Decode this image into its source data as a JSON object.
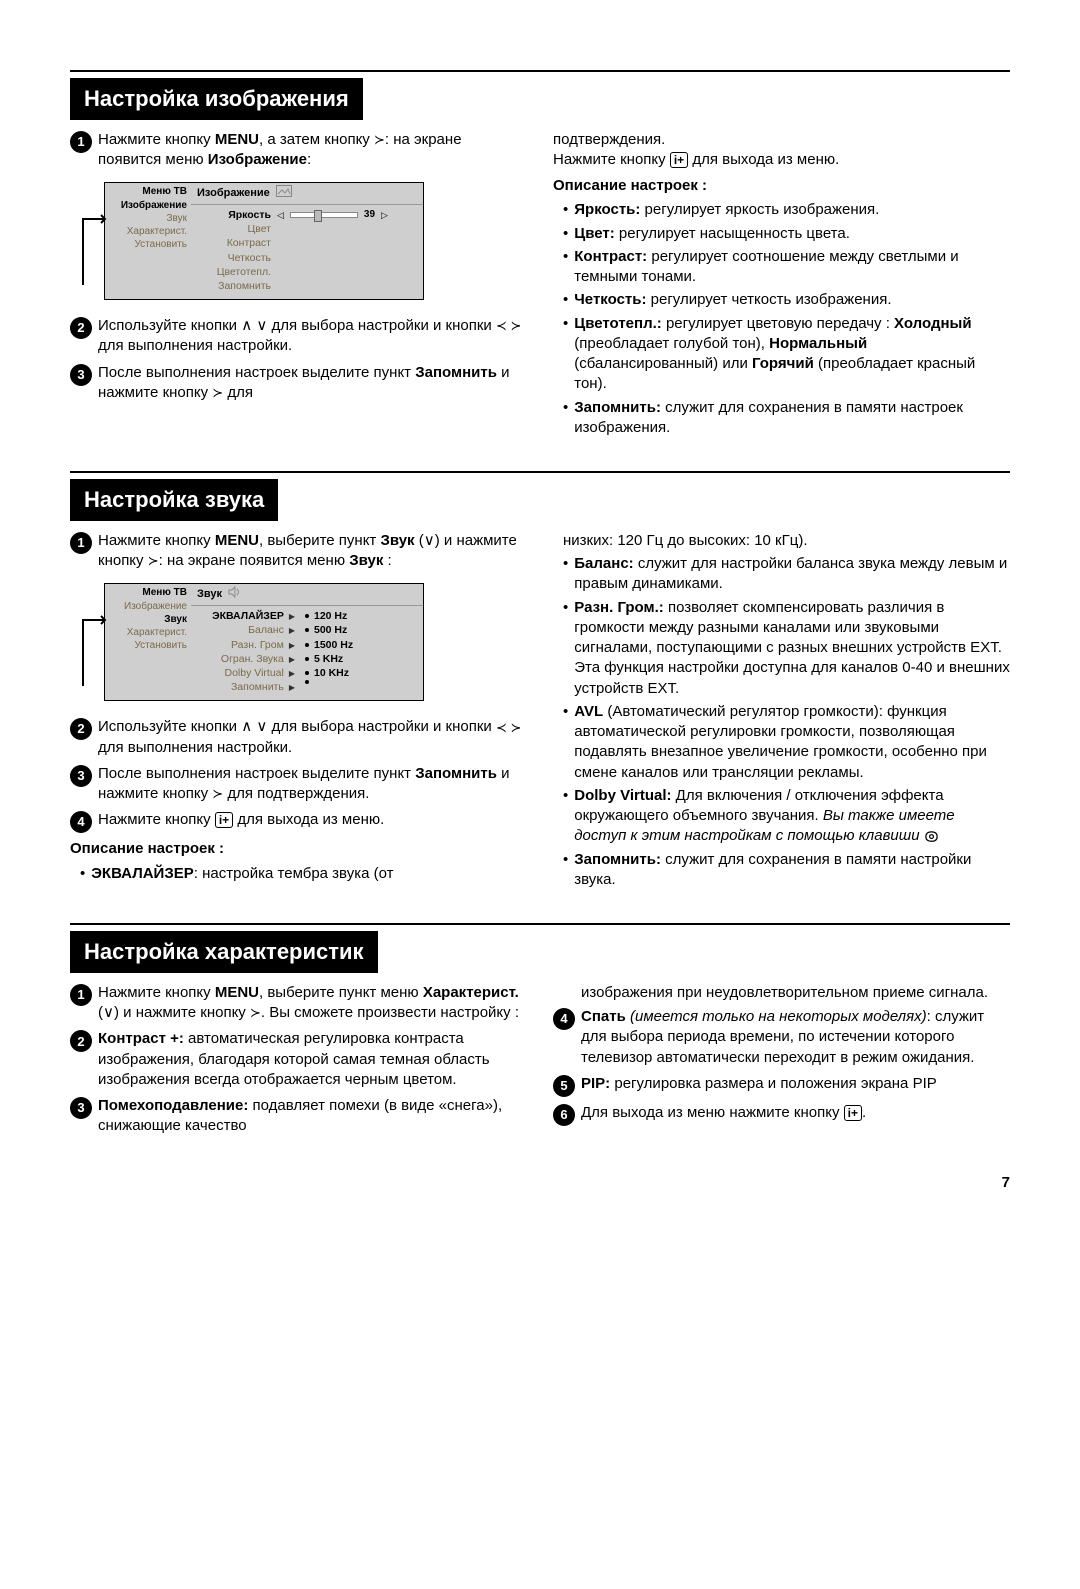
{
  "pageNumber": "7",
  "sections": {
    "image": {
      "title": "Настройка изображения",
      "steps": [
        "Нажмите кнопку <b>MENU</b>, а затем кнопку <span class='tri'>≻</span>: на экране появится меню <b>Изображение</b>:",
        "Используйте кнопки <span class='sym'>∧ ∨</span> для выбора настройки и кнопки <span class='tri'>≺ ≻</span> для выполнения настройки.",
        "После выполнения настроек выделите пункт <b>Запомнить</b> и нажмите кнопку <span class='tri'>≻</span> для"
      ],
      "rightIntro": "подтверждения.<br>Нажмите кнопку <span class='ibox'>i+</span> для выхода из меню.",
      "descHead": "Описание настроек :",
      "desc": [
        "<b>Яркость:</b> регулирует яркость изображения.",
        "<b>Цвет:</b> регулирует насыщенность цвета.",
        "<b>Контраст:</b> регулирует соотношение между светлыми и темными тонами.",
        "<b>Четкость:</b> регулирует четкость изображения.",
        "<b>Цветотепл.:</b> регулирует цветовую передачу : <b>Холодный</b> (преобладает голубой тон), <b>Нормальный</b> (сбалансированный) или <b>Горячий</b> (преобладает красный тон).",
        "<b>Запомнить:</b> служит для сохранения в памяти настроек изображения."
      ],
      "menu": {
        "sidebarTitle": "Меню ТВ",
        "sidebarItems": [
          "Изображение",
          "Звук",
          "Характерист.",
          "Установить"
        ],
        "sidebarSelIndex": 0,
        "mainTitle": "Изображение",
        "rows": [
          "Яркость",
          "Цвет",
          "Контраст",
          "Четкость",
          "Цветотепл.",
          "Запомнить"
        ],
        "selIndex": 0,
        "sliderPos": 0.39,
        "sliderVal": "39"
      }
    },
    "sound": {
      "title": "Настройка звука",
      "steps": [
        "Нажмите кнопку <b>MENU</b>, выберите пункт <b>Звук</b> (<span class='sym'>∨</span>) и нажмите кнопку <span class='tri'>≻</span>: на экране появится меню <b>Звук</b> :",
        "Используйте кнопки <span class='sym'>∧ ∨</span> для выбора настройки и кнопки <span class='tri'>≺ ≻</span> для выполнения настройки.",
        "После выполнения настроек выделите пункт <b>Запомнить</b> и нажмите кнопку <span class='tri'>≻</span> для подтверждения.",
        "Нажмите кнопку <span class='ibox'>i+</span> для выхода из меню."
      ],
      "descHead": "Описание настроек :",
      "leftDesc": [
        "<b>ЭКВАЛАЙЗЕР</b>: настройка тембра звука (от"
      ],
      "rightIntro": "низких: 120 Гц до высоких: 10 кГц).",
      "desc": [
        "<b>Баланс:</b> служит для настройки баланса звука между левым и правым динамиками.",
        "<b>Разн. Гром.:</b> позволяет скомпенсировать различия в громкости между разными каналами или звуковыми сигналами, поступающими с разных внешних устройств EXT. Эта функция настройки доступна для каналов 0-40 и внешних устройств EXT.",
        "<b>AVL</b> (Автоматический регулятор громкости): функция автоматической регулировки громкости, позволяющая подавлять внезапное увеличение громкости, особенно при смене каналов или трансляции рекламы.",
        "<b>Dolby Virtual:</b> Для включения / отключения эффекта окружающего объемного звучания. <span class='italic'>Вы также имеете доступ к этим настройкам с помощью клавиши</span> <span class='surround-ic'><svg viewBox='0 0 16 14'><path d='M2 7 Q2 2 8 2 Q14 2 14 7 Q14 12 8 12 Q2 12 2 7' fill='none' stroke='#000' stroke-width='1.3'/><circle cx='8' cy='7' r='2' fill='none' stroke='#000' stroke-width='1.3'/></svg></span>",
        "<b>Запомнить:</b> служит для сохранения в памяти настройки звука."
      ],
      "menu": {
        "sidebarTitle": "Меню ТВ",
        "sidebarItems": [
          "Изображение",
          "Звук",
          "Характерист.",
          "Установить"
        ],
        "sidebarSelIndex": 1,
        "mainTitle": "Звук",
        "rows": [
          "ЭКВАЛАЙЗЕР",
          "Баланс",
          "Разн. Гром",
          "Огран. Звука",
          "Dolby Virtual",
          "Запомнить"
        ],
        "selIndex": 0,
        "freqs": [
          "120 Hz",
          "500 Hz",
          "1500 Hz",
          "5 KHz",
          "10 KHz"
        ]
      }
    },
    "features": {
      "title": "Настройка характеристик",
      "leftSteps": [
        "Нажмите кнопку <b>MENU</b>, выберите пункт меню <b>Характерист.</b> (<span class='sym'>∨</span>) и нажмите кнопку <span class='tri'>≻</span>. Вы сможете произвести настройку :",
        "<b>Контраст +:</b> автоматическая регулировка контраста изображения, благодаря которой самая темная область изображения всегда отображается черным цветом.",
        "<b>Помехоподавление:</b> подавляет помехи (в виде «снега»), снижающие качество"
      ],
      "rightIntro": "изображения при неудовлетворительном приеме сигнала.",
      "rightSteps": [
        {
          "n": "4",
          "html": "<b>Спать</b> <span class='italic'>(имеется только на некоторых моделях)</span>: служит для выбора периода времени, по истечении которого телевизор автоматически переходит в режим ожидания."
        },
        {
          "n": "5",
          "html": "<b>PIP:</b> регулировка размера и положения экрана PIP"
        },
        {
          "n": "6",
          "html": "Для выхода из меню нажмите кнопку <span class='ibox'>i+</span>."
        }
      ]
    }
  }
}
